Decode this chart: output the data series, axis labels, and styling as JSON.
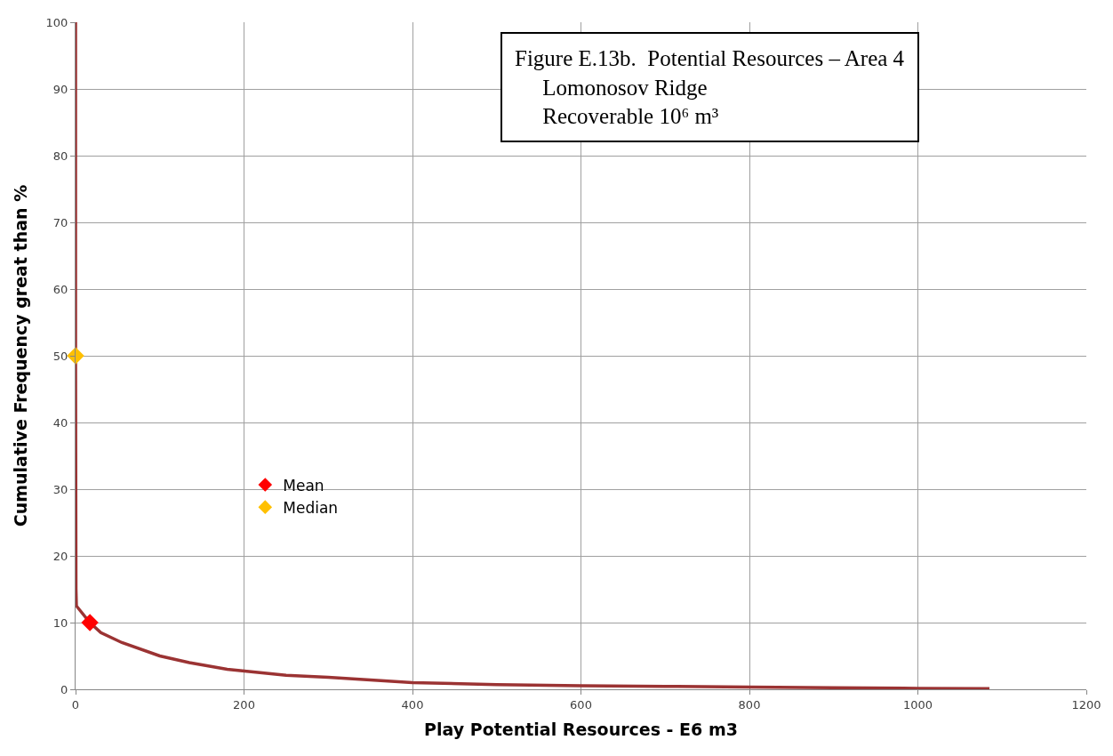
{
  "chart_data": {
    "type": "line",
    "title": "Figure E.13b.  Potential Resources – Area 4\nLomonosov Ridge\nRecoverable 10⁶ m³",
    "xlabel": "Play Potential Resources - E6 m3",
    "ylabel": "Cumulative Frequency great than %",
    "series": [
      {
        "color": "#9b3333",
        "marker": "none",
        "x": [
          0,
          0,
          0.5,
          1,
          17,
          30,
          55,
          100,
          135,
          180,
          250,
          300,
          400,
          500,
          600,
          700,
          800,
          900,
          1000,
          1085
        ],
        "values": [
          100,
          50,
          15,
          12.5,
          10,
          8.5,
          7,
          5,
          4,
          3,
          2.1,
          1.8,
          1,
          0.7,
          0.55,
          0.45,
          0.35,
          0.25,
          0.15,
          0.1
        ]
      },
      {
        "type": "scatter",
        "name": "Mean",
        "color": "#ff0000",
        "marker": "diamond",
        "x": [
          17
        ],
        "values": [
          10
        ]
      },
      {
        "type": "scatter",
        "name": "Median",
        "color": "#ffc000",
        "marker": "diamond",
        "x": [
          0
        ],
        "values": [
          50
        ]
      }
    ],
    "xlim": [
      0,
      1200
    ],
    "xticks": [
      0,
      200,
      400,
      600,
      800,
      1000,
      1200
    ],
    "ylim": [
      0,
      100
    ],
    "yticks": [
      0,
      10,
      20,
      30,
      40,
      50,
      60,
      70,
      80,
      90,
      100
    ],
    "grid": true,
    "legend": "bottom left"
  }
}
